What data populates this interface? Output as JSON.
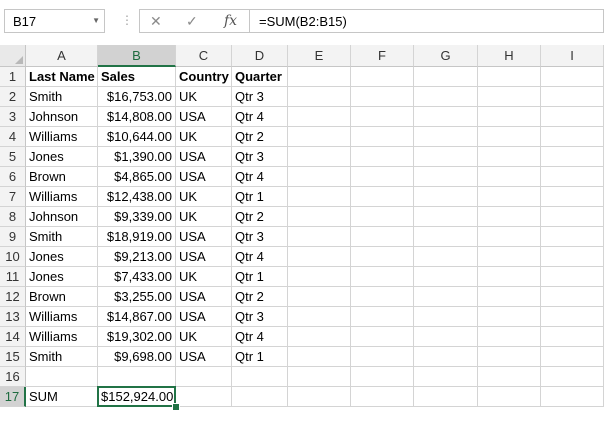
{
  "formula_bar": {
    "name_box": "B17",
    "cancel_icon": "x-icon",
    "enter_icon": "check-icon",
    "fx_label": "fx",
    "formula": "=SUM(B2:B15)"
  },
  "columns": [
    "A",
    "B",
    "C",
    "D",
    "E",
    "F",
    "G",
    "H",
    "I"
  ],
  "rows": [
    "1",
    "2",
    "3",
    "4",
    "5",
    "6",
    "7",
    "8",
    "9",
    "10",
    "11",
    "12",
    "13",
    "14",
    "15",
    "16",
    "17"
  ],
  "headers": [
    "Last Name",
    "Sales",
    "Country",
    "Quarter"
  ],
  "data": [
    [
      "Smith",
      "$16,753.00",
      "UK",
      "Qtr 3"
    ],
    [
      "Johnson",
      "$14,808.00",
      "USA",
      "Qtr 4"
    ],
    [
      "Williams",
      "$10,644.00",
      "UK",
      "Qtr 2"
    ],
    [
      "Jones",
      "$1,390.00",
      "USA",
      "Qtr 3"
    ],
    [
      "Brown",
      "$4,865.00",
      "USA",
      "Qtr 4"
    ],
    [
      "Williams",
      "$12,438.00",
      "UK",
      "Qtr 1"
    ],
    [
      "Johnson",
      "$9,339.00",
      "UK",
      "Qtr 2"
    ],
    [
      "Smith",
      "$18,919.00",
      "USA",
      "Qtr 3"
    ],
    [
      "Jones",
      "$9,213.00",
      "USA",
      "Qtr 4"
    ],
    [
      "Jones",
      "$7,433.00",
      "UK",
      "Qtr 1"
    ],
    [
      "Brown",
      "$3,255.00",
      "USA",
      "Qtr 2"
    ],
    [
      "Williams",
      "$14,867.00",
      "USA",
      "Qtr 3"
    ],
    [
      "Williams",
      "$19,302.00",
      "UK",
      "Qtr 4"
    ],
    [
      "Smith",
      "$9,698.00",
      "USA",
      "Qtr 1"
    ]
  ],
  "sum_row": {
    "label": "SUM",
    "value": "$152,924.00"
  },
  "selected_cell": "B17",
  "colors": {
    "accent": "#217346",
    "grid": "#d4d4d4",
    "header_bg": "#f3f3f3",
    "header_selected_bg": "#d2d2d2"
  }
}
